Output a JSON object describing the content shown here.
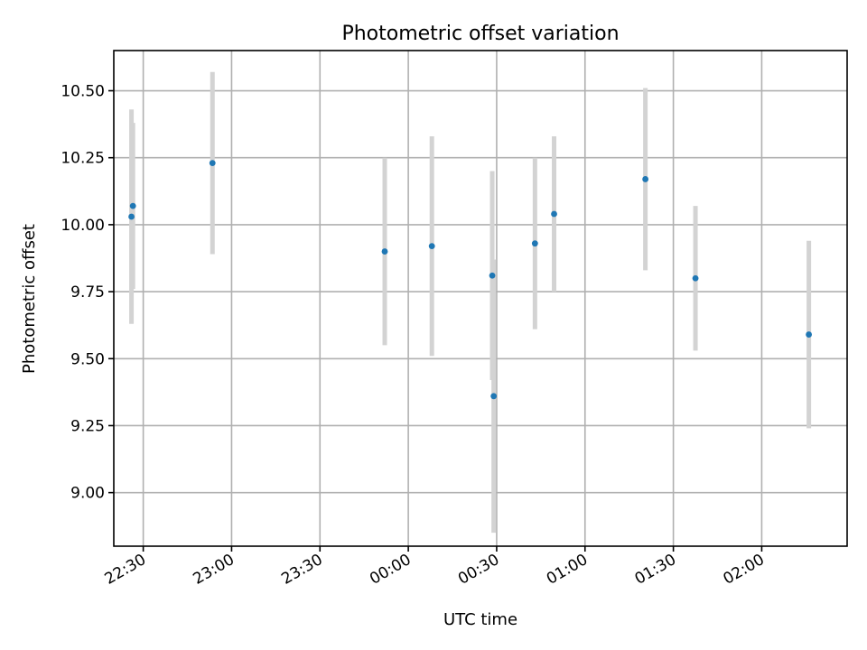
{
  "chart_data": {
    "type": "scatter",
    "title": "Photometric offset variation",
    "xlabel": "UTC time",
    "ylabel": "Photometric offset",
    "grid": true,
    "xlim": [
      "22:20:00",
      "02:29:00"
    ],
    "ylim": [
      8.8,
      10.65
    ],
    "x_ticks": [
      "22:30",
      "23:00",
      "23:30",
      "00:00",
      "00:30",
      "01:00",
      "01:30",
      "02:00"
    ],
    "y_ticks": [
      "9.00",
      "9.25",
      "9.50",
      "9.75",
      "10.00",
      "10.25",
      "10.50"
    ],
    "marker_color": "#1f77b4",
    "errorbar_color": "#d3d3d3",
    "points": [
      {
        "x": "22:26:00",
        "y": 10.03,
        "yerr": 0.4
      },
      {
        "x": "22:26:30",
        "y": 10.07,
        "yerr": 0.31
      },
      {
        "x": "22:53:30",
        "y": 10.23,
        "yerr": 0.34
      },
      {
        "x": "23:52:00",
        "y": 9.9,
        "yerr": 0.35
      },
      {
        "x": "00:08:00",
        "y": 9.92,
        "yerr": 0.41
      },
      {
        "x": "00:28:30",
        "y": 9.81,
        "yerr": 0.39
      },
      {
        "x": "00:29:00",
        "y": 9.36,
        "yerr": 0.51
      },
      {
        "x": "00:43:00",
        "y": 9.93,
        "yerr": 0.32
      },
      {
        "x": "00:49:30",
        "y": 10.04,
        "yerr": 0.29
      },
      {
        "x": "01:20:30",
        "y": 10.17,
        "yerr": 0.34
      },
      {
        "x": "01:37:30",
        "y": 9.8,
        "yerr": 0.27
      },
      {
        "x": "02:16:00",
        "y": 9.59,
        "yerr": 0.35
      }
    ]
  }
}
